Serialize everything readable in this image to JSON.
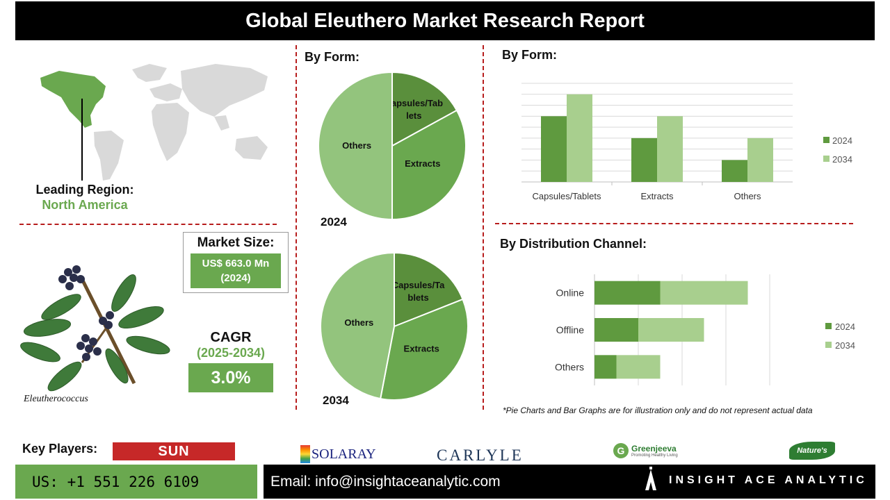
{
  "header": {
    "title": "Global Eleuthero Market Research Report"
  },
  "region": {
    "label": "Leading Region:",
    "value": "North America"
  },
  "plant": {
    "caption": "Eleutherococcus"
  },
  "market_size": {
    "label": "Market Size:",
    "value_line1": "US$ 663.0 Mn",
    "value_line2": "(2024)"
  },
  "cagr": {
    "label": "CAGR",
    "period": "(2025-2034)",
    "value": "3.0%"
  },
  "colors": {
    "dark_green": "#5a8f3c",
    "mid_green": "#6aa84f",
    "light_green": "#93c47d",
    "pale_green": "#a8cf8e",
    "accent": "#6aa84f"
  },
  "chart_data": [
    {
      "type": "pie",
      "title": "By Form:",
      "year": "2024",
      "slices": [
        {
          "label_line1": "Capsules/Tab",
          "label_line2": "lets",
          "value": 17,
          "color": "#5a8f3c"
        },
        {
          "label_line1": "Extracts",
          "label_line2": "",
          "value": 33,
          "color": "#6aa84f"
        },
        {
          "label_line1": "Others",
          "label_line2": "",
          "value": 50,
          "color": "#93c47d"
        }
      ]
    },
    {
      "type": "pie",
      "year": "2034",
      "slices": [
        {
          "label_line1": "Capsules/Ta",
          "label_line2": "blets",
          "value": 19,
          "color": "#5a8f3c"
        },
        {
          "label_line1": "Extracts",
          "label_line2": "",
          "value": 34,
          "color": "#6aa84f"
        },
        {
          "label_line1": "Others",
          "label_line2": "",
          "value": 47,
          "color": "#93c47d"
        }
      ]
    },
    {
      "type": "bar",
      "title": "By Form:",
      "categories": [
        "Capsules/Tablets",
        "Extracts",
        "Others"
      ],
      "series": [
        {
          "name": "2024",
          "values": [
            6,
            4,
            2
          ],
          "color": "#5f9a3f"
        },
        {
          "name": "2034",
          "values": [
            8,
            6,
            4
          ],
          "color": "#a8cf8e"
        }
      ],
      "ylim": [
        0,
        9
      ],
      "grid": true,
      "legend": "right"
    },
    {
      "type": "bar",
      "orientation": "horizontal",
      "stacked": true,
      "title": "By Distribution Channel:",
      "categories": [
        "Online",
        "Offline",
        "Others"
      ],
      "series": [
        {
          "name": "2024",
          "values": [
            3,
            2,
            1
          ],
          "color": "#5f9a3f"
        },
        {
          "name": "2034",
          "values": [
            4,
            3,
            2
          ],
          "color": "#a8cf8e"
        }
      ],
      "xlim": [
        0,
        8
      ],
      "grid": true,
      "legend": "right"
    }
  ],
  "disclaimer": "*Pie Charts and Bar Graphs are for illustration only and do not represent actual data",
  "key_players": {
    "label": "Key Players:",
    "logos": [
      "SUN CHLORELLA",
      "SOLARAY",
      "CARLYLE",
      "Greenjeeva",
      "Promoting Healthy Living",
      "Nature's Way"
    ]
  },
  "contact": {
    "phone": "US: +1 551 226 6109",
    "email": "Email: info@insightaceanalytic.com",
    "brand": "INSIGHT ACE ANALYTIC"
  }
}
